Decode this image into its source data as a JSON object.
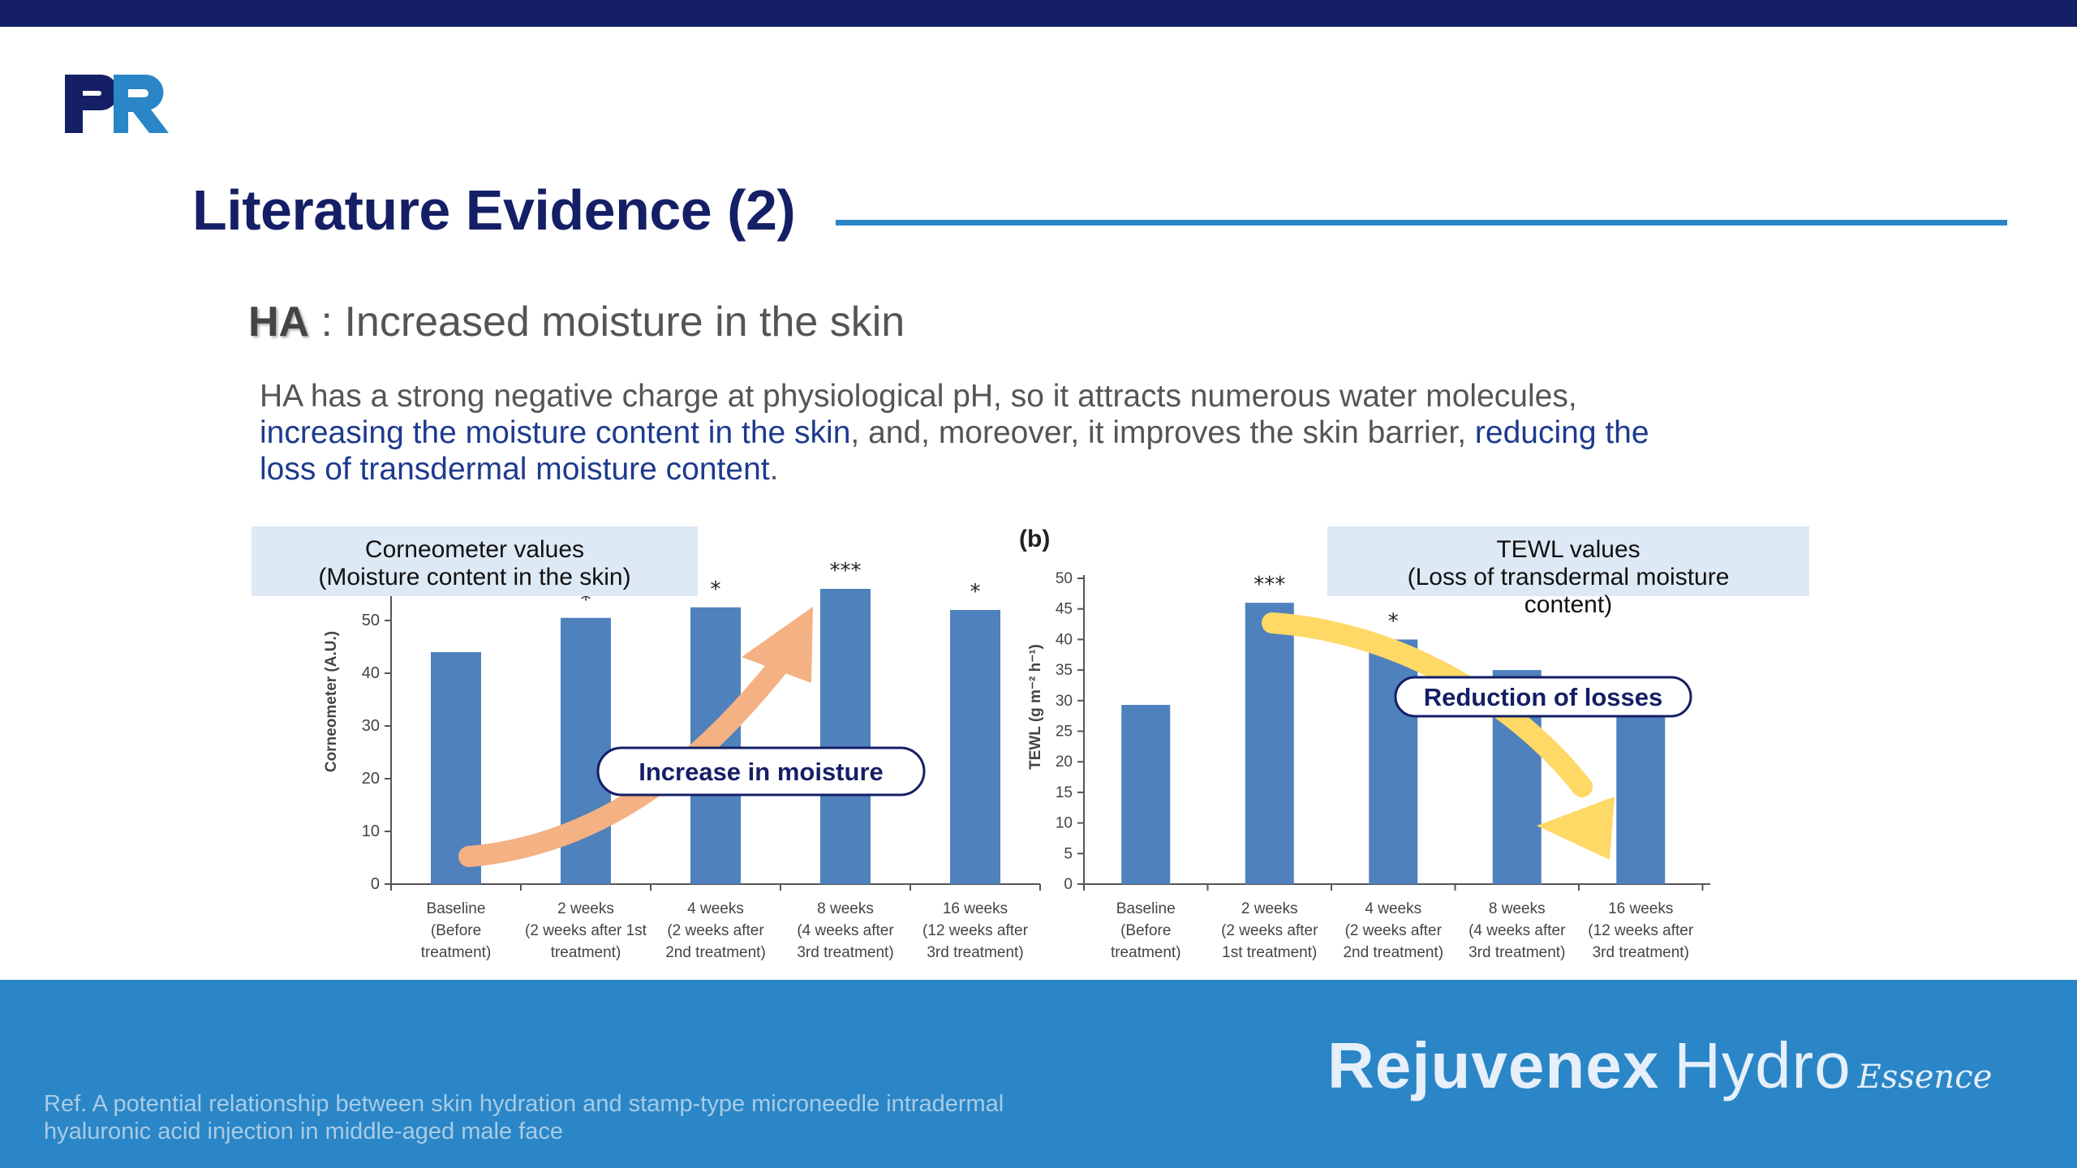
{
  "header": {
    "logo_text": "PR",
    "title": "Literature Evidence (2)"
  },
  "subtitle": {
    "bold": "HA",
    "separator": " : ",
    "text": "Increased moisture in the skin"
  },
  "body": {
    "p1": "HA has a strong negative charge at physiological pH, so it attracts numerous water molecules,",
    "p2_highlight": "increasing the moisture content in the skin",
    "p2_rest": ", and, moreover, it improves the skin barrier, ",
    "p2_highlight2": "reducing the",
    "p3_highlight": "loss of transdermal moisture content",
    "p3_rest": "."
  },
  "chart_data": [
    {
      "type": "bar",
      "panel_label": "",
      "title_box": [
        "Corneometer values",
        "(Moisture content in the skin)"
      ],
      "ylabel": "Corneometer (A.U.)",
      "ylim": [
        0,
        60
      ],
      "yticks": [
        0,
        10,
        20,
        30,
        40,
        50
      ],
      "categories": [
        [
          "Baseline",
          "(Before",
          "treatment)"
        ],
        [
          "2 weeks",
          "(2 weeks after 1st",
          "treatment)"
        ],
        [
          "4 weeks",
          "(2 weeks after",
          "2nd treatment)"
        ],
        [
          "8 weeks",
          "(4 weeks after",
          "3rd treatment)"
        ],
        [
          "16 weeks",
          "(12 weeks after",
          "3rd treatment)"
        ]
      ],
      "values": [
        44,
        50.5,
        52.5,
        56,
        52
      ],
      "significance": [
        "",
        "*",
        "*",
        "***",
        "*"
      ],
      "annotation": "Increase in moisture",
      "bar_color": "#4f81bd",
      "arrow_color": "#f4b183"
    },
    {
      "type": "bar",
      "panel_label": "(b)",
      "title_box": [
        "TEWL values",
        "(Loss of transdermal moisture",
        "content)"
      ],
      "ylabel": "TEWL (g m⁻² h⁻¹)",
      "ylim": [
        0,
        50
      ],
      "yticks": [
        0,
        5,
        10,
        15,
        20,
        25,
        30,
        35,
        40,
        45,
        50
      ],
      "categories": [
        [
          "Baseline",
          "(Before",
          "treatment)"
        ],
        [
          "2 weeks",
          "(2 weeks after",
          "1st treatment)"
        ],
        [
          "4 weeks",
          "(2 weeks after",
          "2nd treatment)"
        ],
        [
          "8 weeks",
          "(4 weeks after",
          "3rd treatment)"
        ],
        [
          "16 weeks",
          "(12 weeks after",
          "3rd treatment)"
        ]
      ],
      "values": [
        29.3,
        46,
        40,
        35,
        33
      ],
      "significance": [
        "",
        "***",
        "*",
        "",
        ""
      ],
      "annotation": "Reduction of losses",
      "bar_color": "#4f81bd",
      "arrow_color": "#ffd966"
    }
  ],
  "footer": {
    "ref_line1": "Ref. A potential relationship between skin hydration and stamp-type microneedle intradermal",
    "ref_line2": "hyaluronic acid injection in middle-aged male face",
    "brand_bold": "Rejuvenex",
    "brand_light": "Hydro",
    "brand_script": "Essence"
  },
  "colors": {
    "navy": "#141f66",
    "accent_blue": "#2a86c6",
    "highlight_text": "#1e3a8e",
    "title_box_bg": "#dde9f5"
  }
}
